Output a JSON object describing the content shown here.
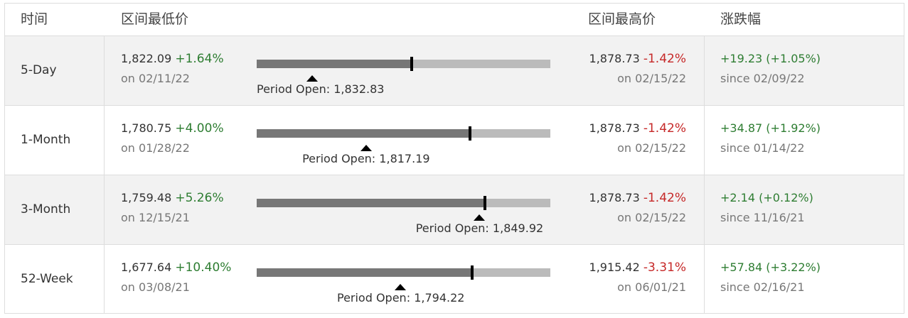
{
  "header": {
    "time": "时间",
    "low": "区间最低价",
    "high": "区间最高价",
    "change": "涨跌幅"
  },
  "open_label": "Period Open:",
  "rows": [
    {
      "period": "5-Day",
      "low": "1,822.09",
      "low_pct": "+1.64%",
      "low_date": "on 02/11/22",
      "open": "1,832.83",
      "high": "1,878.73",
      "high_pct": "-1.42%",
      "high_date": "on 02/15/22",
      "change": "+19.23 (+1.05%)",
      "since": "since 02/09/22"
    },
    {
      "period": "1-Month",
      "low": "1,780.75",
      "low_pct": "+4.00%",
      "low_date": "on 01/28/22",
      "open": "1,817.19",
      "high": "1,878.73",
      "high_pct": "-1.42%",
      "high_date": "on 02/15/22",
      "change": "+34.87 (+1.92%)",
      "since": "since 01/14/22"
    },
    {
      "period": "3-Month",
      "low": "1,759.48",
      "low_pct": "+5.26%",
      "low_date": "on 12/15/21",
      "open": "1,849.92",
      "high": "1,878.73",
      "high_pct": "-1.42%",
      "high_date": "on 02/15/22",
      "change": "+2.14 (+0.12%)",
      "since": "since 11/16/21"
    },
    {
      "period": "52-Week",
      "low": "1,677.64",
      "low_pct": "+10.40%",
      "low_date": "on 03/08/21",
      "open": "1,794.22",
      "high": "1,915.42",
      "high_pct": "-3.31%",
      "high_date": "on 06/01/21",
      "change": "+57.84 (+3.22%)",
      "since": "since 02/16/21"
    }
  ]
}
